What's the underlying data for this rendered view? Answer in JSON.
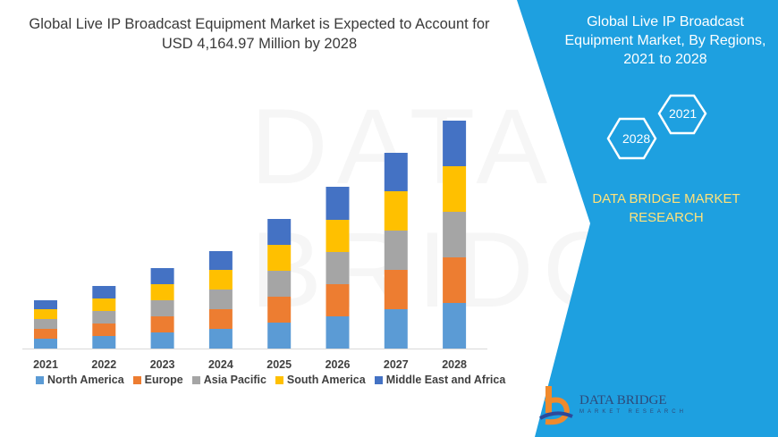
{
  "title": "Global Live IP Broadcast Equipment Market is Expected to Account for USD 4,164.97 Million by 2028",
  "right_panel": {
    "title": "Global Live IP Broadcast Equipment Market, By Regions, 2021 to 2028",
    "hex_start": "2021",
    "hex_end": "2028",
    "brand": "DATA BRIDGE MARKET RESEARCH",
    "logo_text": "DATA BRIDGE",
    "logo_sub": "MARKET RESEARCH",
    "panel_color": "#1ea0e0"
  },
  "watermark": "DATA BRIDGE",
  "chart_data": {
    "type": "bar",
    "stacked": true,
    "categories": [
      "2021",
      "2022",
      "2023",
      "2024",
      "2025",
      "2026",
      "2027",
      "2028"
    ],
    "series": [
      {
        "name": "North America",
        "color": "#5b9bd5",
        "values": [
          11,
          14,
          18,
          22,
          29,
          36,
          44,
          51
        ]
      },
      {
        "name": "Europe",
        "color": "#ed7d31",
        "values": [
          11,
          14,
          18,
          22,
          29,
          36,
          44,
          51
        ]
      },
      {
        "name": "Asia Pacific",
        "color": "#a5a5a5",
        "values": [
          11,
          14,
          18,
          22,
          29,
          36,
          44,
          51
        ]
      },
      {
        "name": "South America",
        "color": "#ffc000",
        "values": [
          11,
          14,
          18,
          22,
          29,
          36,
          44,
          51
        ]
      },
      {
        "name": "Middle East and Africa",
        "color": "#4472c4",
        "values": [
          10,
          14,
          18,
          21,
          29,
          37,
          43,
          51
        ]
      }
    ],
    "legend": "bottom",
    "grid": false,
    "y_axis_shown": false
  }
}
